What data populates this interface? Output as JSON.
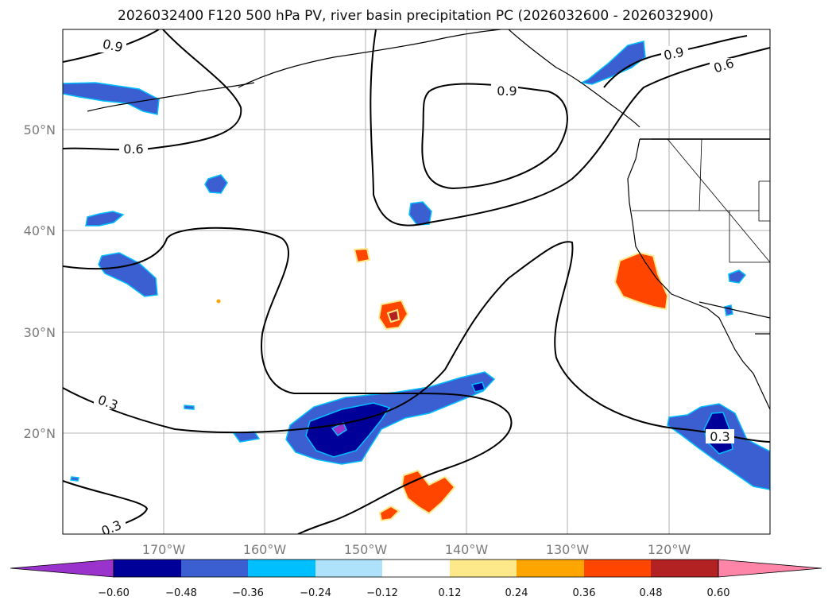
{
  "title": "2026032400 F120 500 hPa PV, river basin precipitation PC (2026032600 - 2026032900)",
  "map": {
    "lon_range": [
      -180,
      -110
    ],
    "lat_range": [
      10,
      60
    ],
    "gridlines": true,
    "lon_ticks": [
      {
        "value": -170,
        "label": "170°W"
      },
      {
        "value": -160,
        "label": "160°W"
      },
      {
        "value": -150,
        "label": "150°W"
      },
      {
        "value": -140,
        "label": "140°W"
      },
      {
        "value": -130,
        "label": "130°W"
      },
      {
        "value": -120,
        "label": "120°W"
      }
    ],
    "lat_ticks": [
      {
        "value": 50,
        "label": "50°N"
      },
      {
        "value": 40,
        "label": "40°N"
      },
      {
        "value": 30,
        "label": "30°N"
      },
      {
        "value": 20,
        "label": "20°N"
      }
    ],
    "contour_labels": [
      "0.9",
      "0.9",
      "0.9",
      "0.6",
      "0.6",
      "0.3",
      "0.3",
      "0.3"
    ]
  },
  "colorbar": {
    "ticks": [
      "−0.60",
      "−0.48",
      "−0.36",
      "−0.24",
      "−0.12",
      "0.12",
      "0.24",
      "0.36",
      "0.48",
      "0.60"
    ],
    "colors": [
      "#9933cc",
      "#000099",
      "#3b5fd1",
      "#00bfff",
      "#aee2fb",
      "#ffffff",
      "#fde98a",
      "#ffa500",
      "#ff4500",
      "#b22222",
      "#ff85a8"
    ],
    "extend": "both"
  }
}
